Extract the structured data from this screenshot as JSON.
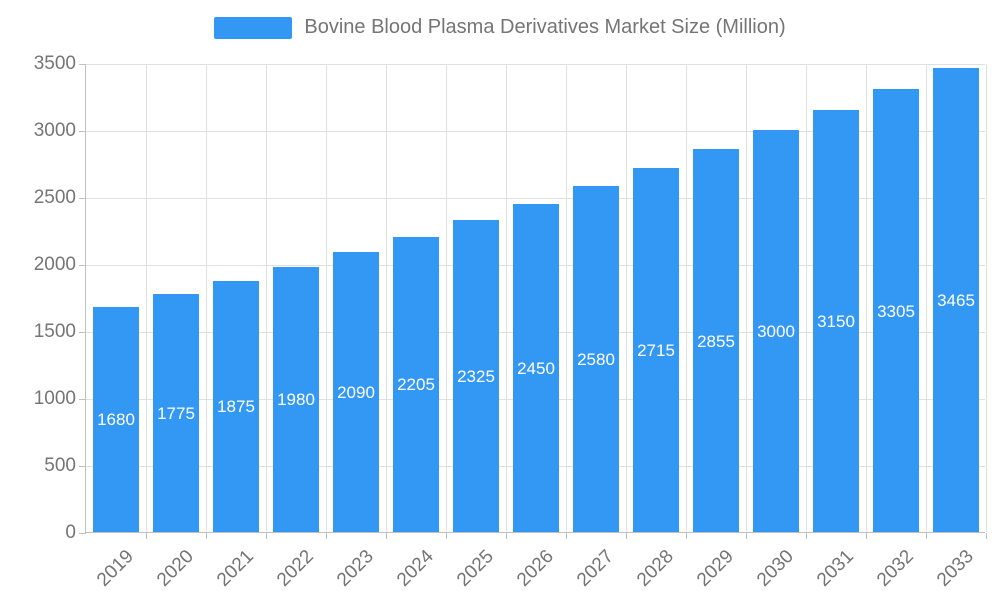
{
  "legend": {
    "label": "Bovine Blood Plasma Derivatives Market Size (Million)"
  },
  "chart_data": {
    "type": "bar",
    "title": "Bovine Blood Plasma Derivatives Market Size (Million)",
    "categories": [
      "2019",
      "2020",
      "2021",
      "2022",
      "2023",
      "2024",
      "2025",
      "2026",
      "2027",
      "2028",
      "2029",
      "2030",
      "2031",
      "2032",
      "2033"
    ],
    "values": [
      1680,
      1775,
      1875,
      1980,
      2090,
      2205,
      2325,
      2450,
      2580,
      2715,
      2855,
      3000,
      3150,
      3305,
      3465
    ],
    "xlabel": "",
    "ylabel": "",
    "ylim": [
      0,
      3500
    ],
    "yticks": [
      0,
      500,
      1000,
      1500,
      2000,
      2500,
      3000,
      3500
    ],
    "grid": true,
    "legend_position": "top",
    "value_label_position": "inside-center",
    "x_label_rotation": 45,
    "colors": {
      "bar": "#3398f4",
      "value_label": "#ffffff",
      "axis_text": "#757575",
      "title_text": "#757575",
      "grid_line": "#e0e0e0",
      "axis_line": "#c0c0c0"
    }
  }
}
